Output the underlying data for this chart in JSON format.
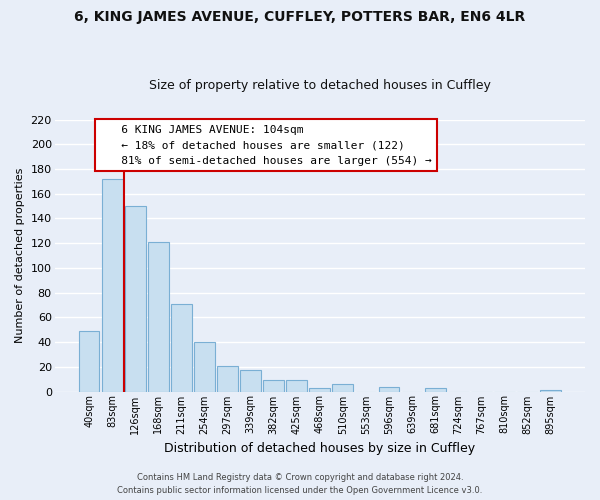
{
  "title": "6, KING JAMES AVENUE, CUFFLEY, POTTERS BAR, EN6 4LR",
  "subtitle": "Size of property relative to detached houses in Cuffley",
  "xlabel": "Distribution of detached houses by size in Cuffley",
  "ylabel": "Number of detached properties",
  "bar_color": "#c8dff0",
  "bar_edge_color": "#7aafd4",
  "categories": [
    "40sqm",
    "83sqm",
    "126sqm",
    "168sqm",
    "211sqm",
    "254sqm",
    "297sqm",
    "339sqm",
    "382sqm",
    "425sqm",
    "468sqm",
    "510sqm",
    "553sqm",
    "596sqm",
    "639sqm",
    "681sqm",
    "724sqm",
    "767sqm",
    "810sqm",
    "852sqm",
    "895sqm"
  ],
  "values": [
    49,
    172,
    150,
    121,
    71,
    40,
    21,
    17,
    9,
    9,
    3,
    6,
    0,
    4,
    0,
    3,
    0,
    0,
    0,
    0,
    1
  ],
  "ylim": [
    0,
    220
  ],
  "yticks": [
    0,
    20,
    40,
    60,
    80,
    100,
    120,
    140,
    160,
    180,
    200,
    220
  ],
  "vline_x": 1.5,
  "vline_color": "#cc0000",
  "annotation_title": "6 KING JAMES AVENUE: 104sqm",
  "annotation_line1": "← 18% of detached houses are smaller (122)",
  "annotation_line2": "81% of semi-detached houses are larger (554) →",
  "annotation_box_color": "#ffffff",
  "annotation_box_edge": "#cc0000",
  "footer1": "Contains HM Land Registry data © Crown copyright and database right 2024.",
  "footer2": "Contains public sector information licensed under the Open Government Licence v3.0.",
  "background_color": "#e8eef8",
  "grid_color": "#ffffff"
}
